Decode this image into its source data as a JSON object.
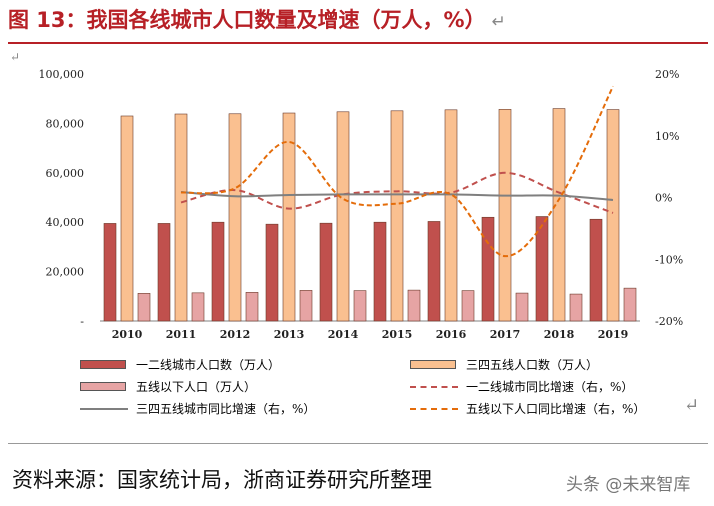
{
  "title": "图 13：我国各线城市人口数量及增速（万人，%）",
  "return_mark": "↵",
  "source": "资料来源：国家统计局，浙商证券研究所整理",
  "watermark": "头条 @未来智库",
  "chart_data": {
    "type": "bar",
    "categories": [
      "2010",
      "2011",
      "2012",
      "2013",
      "2014",
      "2015",
      "2016",
      "2017",
      "2018",
      "2019"
    ],
    "y_left": {
      "min": 0,
      "max": 100000,
      "ticks": [
        "-",
        "20,000",
        "40,000",
        "60,000",
        "80,000",
        "100,000"
      ],
      "tick_values": [
        0,
        20000,
        40000,
        60000,
        80000,
        100000
      ]
    },
    "y_right": {
      "min": -20,
      "max": 20,
      "ticks": [
        "-20%",
        "-10%",
        "0%",
        "10%",
        "20%"
      ],
      "tick_values": [
        -20,
        -10,
        0,
        10,
        20
      ]
    },
    "series": [
      {
        "name": "一二线城市人口数（万人）",
        "kind": "bar",
        "axis": "left",
        "color": "#c0504d",
        "values": [
          39500,
          39500,
          40000,
          39200,
          39600,
          40000,
          40300,
          42000,
          42300,
          41200
        ]
      },
      {
        "name": "三四五线人口数（万人）",
        "kind": "bar",
        "axis": "left",
        "color": "#fac090",
        "values": [
          83000,
          83800,
          83900,
          84200,
          84700,
          85100,
          85500,
          85700,
          86000,
          85600
        ]
      },
      {
        "name": "五线以下人口（万人）",
        "kind": "bar",
        "axis": "left",
        "color": "#e6a4a4",
        "values": [
          11200,
          11400,
          11600,
          12400,
          12300,
          12500,
          12300,
          11300,
          10900,
          13300
        ]
      },
      {
        "name": "一二线城市同比增速（右，%）",
        "kind": "line",
        "axis": "right",
        "color": "#c0504d",
        "dash": "6,4",
        "values": [
          null,
          -0.8,
          1.2,
          -1.8,
          0.5,
          1.0,
          0.8,
          4.0,
          0.8,
          -2.5
        ]
      },
      {
        "name": "三四五线城市同比增速（右，%）",
        "kind": "line",
        "axis": "right",
        "color": "#7f7f7f",
        "dash": "",
        "values": [
          null,
          0.9,
          0.2,
          0.4,
          0.5,
          0.5,
          0.5,
          0.3,
          0.3,
          -0.4
        ]
      },
      {
        "name": "五线以下人口同比增速（右，%）",
        "kind": "line",
        "axis": "right",
        "color": "#e46c0a",
        "dash": "5,3",
        "values": [
          null,
          0.8,
          1.5,
          9.0,
          -0.2,
          -1.0,
          0.5,
          -9.5,
          -0.3,
          18.0
        ]
      }
    ]
  }
}
